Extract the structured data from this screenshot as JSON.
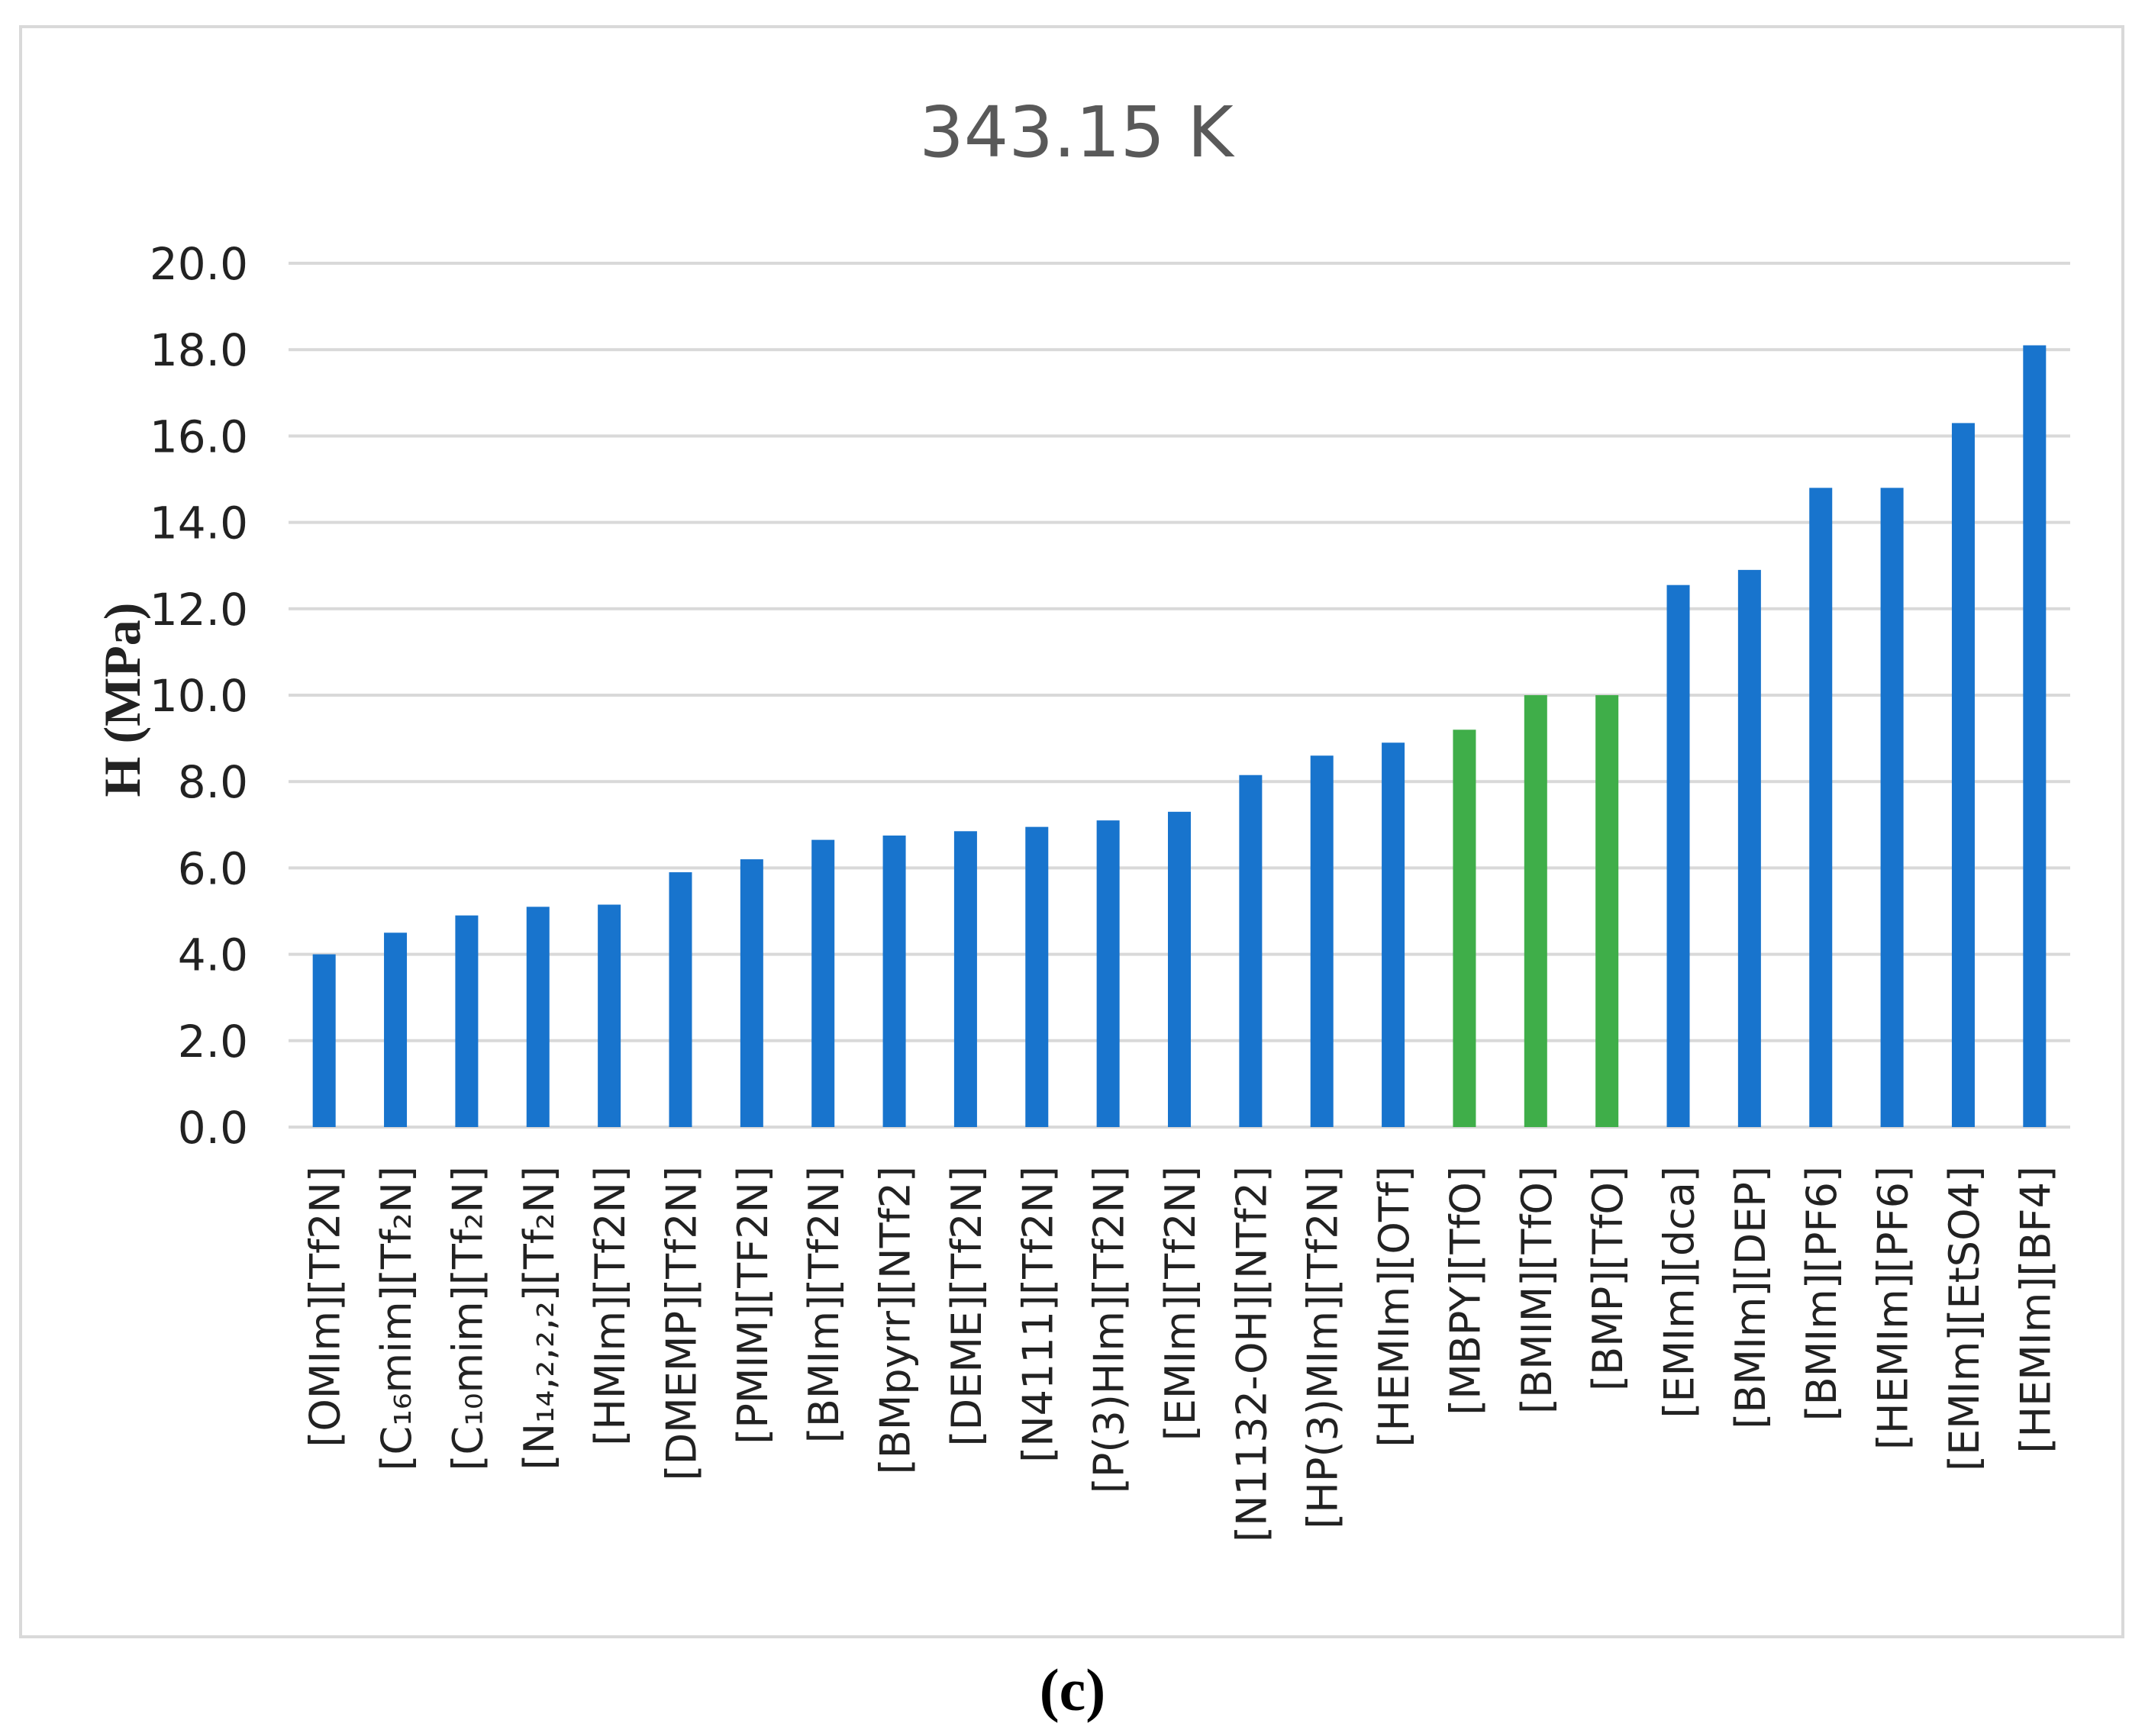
{
  "chart_data": {
    "type": "bar",
    "title": "343.15 K",
    "ylabel": "H (MPa)",
    "xlabel": "",
    "ylim": [
      0,
      20
    ],
    "yticks": [
      "0.0",
      "2.0",
      "4.0",
      "6.0",
      "8.0",
      "10.0",
      "12.0",
      "14.0",
      "16.0",
      "18.0",
      "20.0"
    ],
    "grid": true,
    "categories": [
      "[OMIm][Tf2N]",
      "[C₁₆mim][Tf₂N]",
      "[C₁₀mim][Tf₂N]",
      "[N₁₄,₂,₂,₂][Tf₂N]",
      "[HMIm][Tf2N]",
      "[DMEMP][Tf2N]",
      "[PMIM][TF2N]",
      "[BMIm][Tf2N]",
      "[BMpyrr][NTf2]",
      "[DEME][Tf2N]",
      "[N4111][Tf2N]",
      "[P(3)HIm][Tf2N]",
      "[EMIm][Tf2N]",
      "[N1132-OH][NTf2]",
      "[HP(3)MIm][Tf2N]",
      "[HEMIm][OTf]",
      "[MBPY][TfO]",
      "[BMIM][TfO]",
      "[BMP][TfO]",
      "[EMIm][dca]",
      "[BMIm][DEP]",
      "[BMIm][PF6]",
      "[HEMIm][PF6]",
      "[EMIm][EtSO4]",
      "[HEMIm][BF4]"
    ],
    "values": [
      4.0,
      4.5,
      4.9,
      5.1,
      5.15,
      5.9,
      6.2,
      6.65,
      6.75,
      6.85,
      6.95,
      7.1,
      7.3,
      8.15,
      8.6,
      8.9,
      9.2,
      10.0,
      10.0,
      12.55,
      12.9,
      14.8,
      14.8,
      16.3,
      18.1
    ],
    "bar_colors": [
      "#1874cd",
      "#1874cd",
      "#1874cd",
      "#1874cd",
      "#1874cd",
      "#1874cd",
      "#1874cd",
      "#1874cd",
      "#1874cd",
      "#1874cd",
      "#1874cd",
      "#1874cd",
      "#1874cd",
      "#1874cd",
      "#1874cd",
      "#1874cd",
      "#3fae49",
      "#3fae49",
      "#3fae49",
      "#1874cd",
      "#1874cd",
      "#1874cd",
      "#1874cd",
      "#1874cd",
      "#1874cd"
    ]
  },
  "caption": "(c)",
  "colors": {
    "gridline": "#d9d9d9",
    "axis_text": "#222222",
    "title_text": "#595959"
  }
}
